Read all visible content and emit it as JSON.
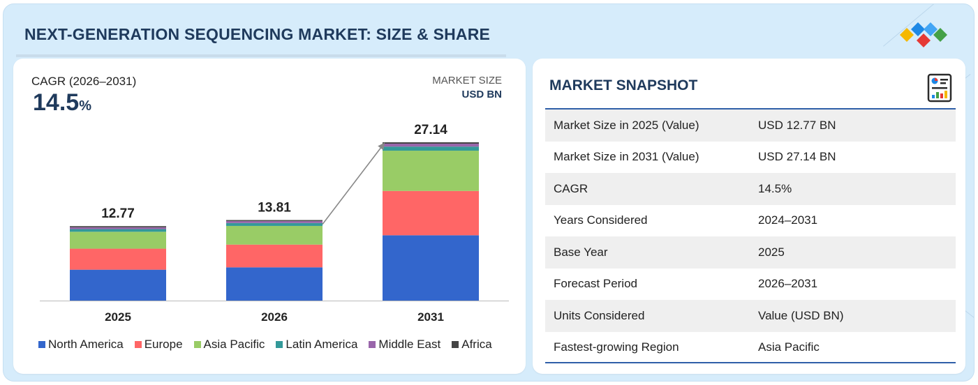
{
  "header": {
    "title": "NEXT-GENERATION SEQUENCING MARKET: SIZE & SHARE"
  },
  "logo": {
    "name": "brand-diamonds-logo",
    "colors": [
      "#f5b800",
      "#1e88e5",
      "#e53935",
      "#43a047"
    ]
  },
  "chart_panel": {
    "cagr_label": "CAGR (2026–2031)",
    "cagr_value": "14.5",
    "cagr_unit": "%",
    "market_size_label": "MARKET SIZE",
    "market_size_unit": "USD BN"
  },
  "chart_data": {
    "type": "bar",
    "stacked": true,
    "categories": [
      "2025",
      "2026",
      "2031"
    ],
    "totals": [
      12.77,
      13.81,
      27.14
    ],
    "total_labels": [
      "12.77",
      "13.81",
      "27.14"
    ],
    "series": [
      {
        "name": "North America",
        "color": "#3366cc",
        "values": [
          5.3,
          5.7,
          11.2
        ]
      },
      {
        "name": "Europe",
        "color": "#ff6666",
        "values": [
          3.6,
          3.9,
          7.6
        ]
      },
      {
        "name": "Asia Pacific",
        "color": "#99cc66",
        "values": [
          2.9,
          3.2,
          6.9
        ]
      },
      {
        "name": "Latin America",
        "color": "#339999",
        "values": [
          0.45,
          0.5,
          0.7
        ]
      },
      {
        "name": "Middle East",
        "color": "#9966aa",
        "values": [
          0.32,
          0.34,
          0.5
        ]
      },
      {
        "name": "Africa",
        "color": "#444444",
        "values": [
          0.2,
          0.17,
          0.24
        ]
      }
    ],
    "ylim": [
      0,
      27.14
    ],
    "growth_arrow": {
      "from": "2026",
      "to": "2031"
    },
    "grid": false,
    "legend_position": "bottom"
  },
  "snapshot": {
    "title": "MARKET SNAPSHOT",
    "icon": "report-icon",
    "rows": [
      {
        "key": "Market Size in 2025 (Value)",
        "value": "USD 12.77 BN"
      },
      {
        "key": "Market Size in 2031 (Value)",
        "value": "USD 27.14 BN"
      },
      {
        "key": "CAGR",
        "value": "14.5%"
      },
      {
        "key": "Years Considered",
        "value": "2024–2031"
      },
      {
        "key": "Base Year",
        "value": "2025"
      },
      {
        "key": "Forecast Period",
        "value": "2026–2031"
      },
      {
        "key": "Units Considered",
        "value": "Value (USD BN)"
      },
      {
        "key": "Fastest-growing Region",
        "value": "Asia Pacific"
      }
    ]
  }
}
